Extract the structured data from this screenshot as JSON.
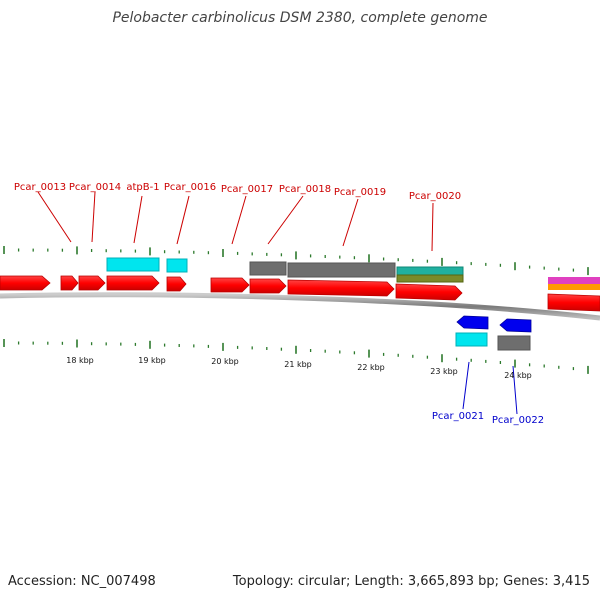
{
  "title": "Pelobacter carbinolicus DSM 2380, complete genome",
  "accession": "Accession: NC_007498",
  "summary": "Topology: circular; Length: 3,665,893 bp; Genes: 3,415",
  "colors": {
    "forward_gene": "#ff0000",
    "reverse_gene": "#0000ff",
    "cds_cyan": "#00e5ee",
    "cds_gray": "#707070",
    "teal": "#20b0a0",
    "olive": "#7a8a2a",
    "magenta": "#e040c0",
    "orange": "#ff9900",
    "tick": "#2d7a2d",
    "backbone": "#888888"
  },
  "scale_labels": [
    "18 kbp",
    "19 kbp",
    "20 kbp",
    "21 kbp",
    "22 kbp",
    "23 kbp",
    "24 kbp"
  ],
  "forward_labels": [
    "Pcar_0013",
    "Pcar_0014",
    "atpB-1",
    "Pcar_0016",
    "Pcar_0017",
    "Pcar_0018",
    "Pcar_0019",
    "Pcar_0020"
  ],
  "reverse_labels": [
    "Pcar_0021",
    "Pcar_0022"
  ]
}
